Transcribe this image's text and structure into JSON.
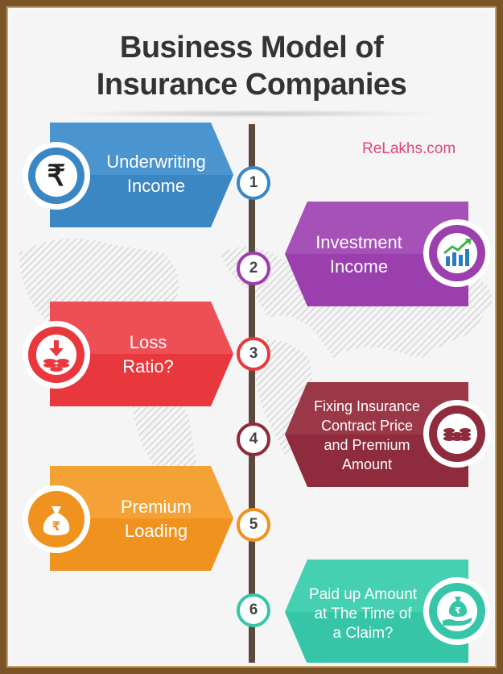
{
  "title": {
    "line1": "Business Model of",
    "line2": "Insurance Companies"
  },
  "brand": "ReLakhs.com",
  "items": [
    {
      "number": "1",
      "line1": "Underwriting",
      "line2": "Income",
      "color": "#3a87c4",
      "dark": "#2b6fa6",
      "icon": "rupee-icon"
    },
    {
      "number": "2",
      "line1": "Investment",
      "line2": "Income",
      "color": "#9b3fae",
      "dark": "#7e2f8f",
      "icon": "growth-chart-icon"
    },
    {
      "number": "3",
      "line1": "Loss",
      "line2": "Ratio?",
      "color": "#e8383d",
      "dark": "#c62a2f",
      "icon": "coins-down-icon"
    },
    {
      "number": "4",
      "line1": "Fixing Insurance",
      "line2": "Contract Price",
      "line3": "and Premium",
      "line4": "Amount",
      "color": "#8e2b3c",
      "dark": "#741f30",
      "icon": "coin-stack-icon"
    },
    {
      "number": "5",
      "line1": "Premium",
      "line2": "Loading",
      "color": "#f0921e",
      "dark": "#d77a0e",
      "icon": "money-bag-icon"
    },
    {
      "number": "6",
      "line1": "Paid up Amount",
      "line2": "at The Time of",
      "line3": "a Claim?",
      "color": "#36c6a7",
      "dark": "#27a88c",
      "icon": "hand-money-bag-icon"
    }
  ]
}
